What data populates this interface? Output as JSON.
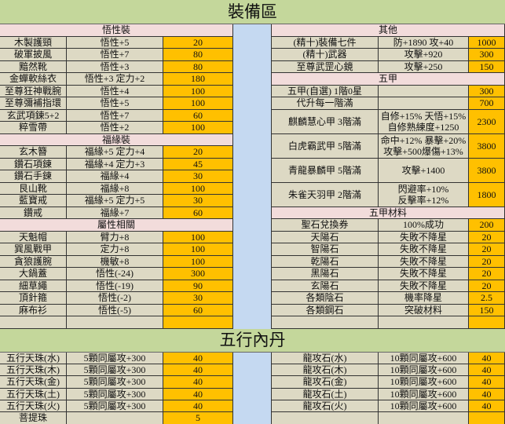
{
  "top_title": "裝備區",
  "bottom_title": "五行內丹",
  "colors": {
    "title_bg": "#c4d79b",
    "header_bg": "#f2dcdb",
    "cell_bg": "#ddd9c4",
    "price_bg": "#ffc000",
    "separator_bg": "#c5d9f1"
  },
  "left_sections": [
    {
      "header": "悟性裝",
      "items": [
        {
          "name": "木製護頸",
          "stat": [
            "悟性+5"
          ],
          "price": "20"
        },
        {
          "name": "破軍披風",
          "stat": [
            "悟性+7"
          ],
          "price": "80"
        },
        {
          "name": "黯然靴",
          "stat": [
            "悟性+3"
          ],
          "price": "80"
        },
        {
          "name": "金蟬軟絲衣",
          "stat": [
            "悟性+3 定力+2"
          ],
          "price": "180"
        },
        {
          "name": "至尊狂神戰腕",
          "stat": [
            "悟性+4"
          ],
          "price": "100"
        },
        {
          "name": "至尊彌補指環",
          "stat": [
            "悟性+5"
          ],
          "price": "100"
        },
        {
          "name": "玄武項鍊5+2",
          "stat": [
            "悟性+7"
          ],
          "price": "60"
        },
        {
          "name": "粹雪帶",
          "stat": [
            "悟性+2"
          ],
          "price": "100"
        }
      ]
    },
    {
      "header": "福緣裝",
      "items": [
        {
          "name": "玄木簪",
          "stat": [
            "福緣+5 定力+4"
          ],
          "price": "20"
        },
        {
          "name": "鑽石項鍊",
          "stat": [
            "福緣+4 定力+3"
          ],
          "price": "45"
        },
        {
          "name": "鑽石手鍊",
          "stat": [
            "福緣+4"
          ],
          "price": "30"
        },
        {
          "name": "艮山靴",
          "stat": [
            "福緣+8"
          ],
          "price": "100"
        },
        {
          "name": "藍寶戒",
          "stat": [
            "福緣+5 定力+5"
          ],
          "price": "30"
        },
        {
          "name": "鑽戒",
          "stat": [
            "福緣+7"
          ],
          "price": "60"
        }
      ]
    },
    {
      "header": "屬性相關",
      "items": [
        {
          "name": "天魁帽",
          "stat": [
            "臂力+8"
          ],
          "price": "100"
        },
        {
          "name": "巽風戰甲",
          "stat": [
            "定力+8"
          ],
          "price": "100"
        },
        {
          "name": "貪狼護腕",
          "stat": [
            "機敏+8"
          ],
          "price": "100"
        },
        {
          "name": "大鍋蓋",
          "stat": [
            "悟性(-24)"
          ],
          "price": "300"
        },
        {
          "name": "細草繩",
          "stat": [
            "悟性(-19)"
          ],
          "price": "90"
        },
        {
          "name": "頂針箍",
          "stat": [
            "悟性(-2)"
          ],
          "price": "30"
        },
        {
          "name": "麻布衫",
          "stat": [
            "悟性(-5)"
          ],
          "price": "60"
        }
      ]
    }
  ],
  "right_sections": [
    {
      "header": "其他",
      "items": [
        {
          "name": "(精十)裝備七件",
          "stat": [
            "防+1890 攻+40"
          ],
          "price": "1000"
        },
        {
          "name": "(精十)武器",
          "stat": [
            "攻擊+920"
          ],
          "price": "300"
        },
        {
          "name": "至尊武罡心鏡",
          "stat": [
            "攻擊+250"
          ],
          "price": "150"
        }
      ]
    },
    {
      "header": "五甲",
      "items": [
        {
          "name": "五甲(自選) 1階0星",
          "stat": [
            ""
          ],
          "price": "300"
        },
        {
          "name": "代升每一階滿",
          "stat": [
            ""
          ],
          "price": "700"
        },
        {
          "name": "麒麟慧心甲 3階滿",
          "stat": [
            "自修+15% 天悟+15%",
            "自修熟練度+1250"
          ],
          "price": "2300"
        },
        {
          "name": "白虎霸武甲 5階滿",
          "stat": [
            "命中+12% 暴擊+20%",
            "攻擊+500爆傷+13%"
          ],
          "price": "3800"
        },
        {
          "name": "青龍暴麟甲 5階滿",
          "stat": [
            "攻擊+1400"
          ],
          "price": "3800",
          "rows": 2
        },
        {
          "name": "朱雀天羽甲 2階滿",
          "stat": [
            "閃避率+10%",
            "反擊率+12%"
          ],
          "price": "1800"
        }
      ]
    },
    {
      "header": "五甲材料",
      "items": [
        {
          "name": "聖石兌換券",
          "stat": [
            "100%成功"
          ],
          "price": "200"
        },
        {
          "name": "天陽石",
          "stat": [
            "失敗不降星"
          ],
          "price": "20"
        },
        {
          "name": "智陽石",
          "stat": [
            "失敗不降星"
          ],
          "price": "20"
        },
        {
          "name": "乾陽石",
          "stat": [
            "失敗不降星"
          ],
          "price": "20"
        },
        {
          "name": "黑陽石",
          "stat": [
            "失敗不降星"
          ],
          "price": "20"
        },
        {
          "name": "玄陽石",
          "stat": [
            "失敗不降星"
          ],
          "price": "20"
        },
        {
          "name": "各類陰石",
          "stat": [
            "機率降星"
          ],
          "price": "2.5"
        },
        {
          "name": "各類鋼石",
          "stat": [
            "突破材料"
          ],
          "price": "150"
        }
      ]
    }
  ],
  "bottom_left": [
    {
      "name": "五行天珠(水)",
      "stat": "5顆同屬攻+300",
      "price": "40"
    },
    {
      "name": "五行天珠(木)",
      "stat": "5顆同屬攻+300",
      "price": "40"
    },
    {
      "name": "五行天珠(金)",
      "stat": "5顆同屬攻+300",
      "price": "40"
    },
    {
      "name": "五行天珠(土)",
      "stat": "5顆同屬攻+300",
      "price": "40"
    },
    {
      "name": "五行天珠(火)",
      "stat": "5顆同屬攻+300",
      "price": "40"
    },
    {
      "name": "菩提珠",
      "stat": "",
      "price": "5"
    }
  ],
  "bottom_right": [
    {
      "name": "龍攻石(水)",
      "stat": "10顆同屬攻+600",
      "price": "40"
    },
    {
      "name": "龍攻石(木)",
      "stat": "10顆同屬攻+600",
      "price": "40"
    },
    {
      "name": "龍攻石(金)",
      "stat": "10顆同屬攻+600",
      "price": "40"
    },
    {
      "name": "龍攻石(土)",
      "stat": "10顆同屬攻+600",
      "price": "40"
    },
    {
      "name": "龍攻石(火)",
      "stat": "10顆同屬攻+600",
      "price": "40"
    },
    {
      "name": "",
      "stat": "",
      "price": ""
    }
  ]
}
